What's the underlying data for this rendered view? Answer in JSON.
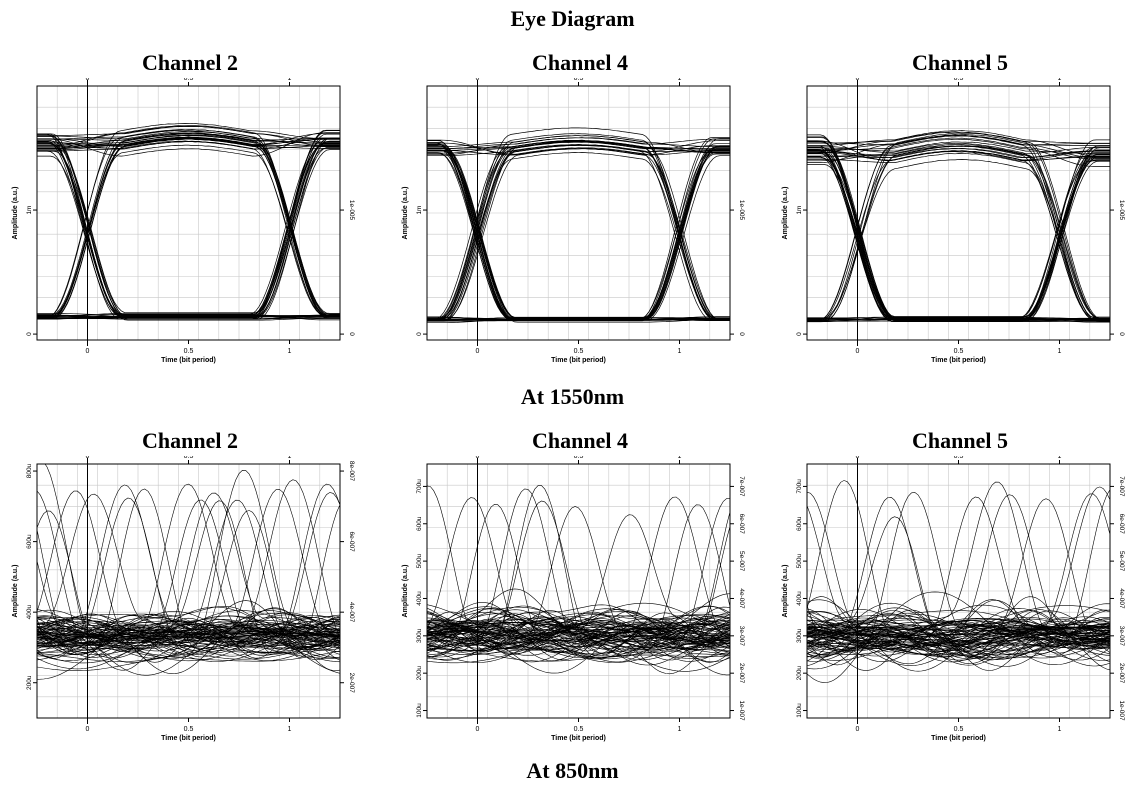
{
  "page": {
    "title": "Eye Diagram",
    "row_captions": [
      "At 1550nm",
      "At 850nm"
    ]
  },
  "chart_data": [
    {
      "type": "line",
      "group": "1550nm",
      "panel_title": "Channel 2",
      "xlabel": "Time (bit period)",
      "ylabel": "Amplitude (a.u.)",
      "xlim": [
        -0.25,
        1.25
      ],
      "ylim": [
        -0.02,
        0.84
      ],
      "x_ticks_bottom": [
        "0",
        "0.5",
        "1"
      ],
      "x_ticks_top": [
        "0",
        "0.5",
        "1"
      ],
      "y_ticks_left": [
        "0",
        "1m"
      ],
      "y_ticks_right": [
        "0",
        "1e-005"
      ],
      "y_tick_values": [
        0,
        0.42
      ],
      "eye": {
        "high": 0.65,
        "low": 0.06,
        "high_spread": 0.07,
        "low_spread": 0.018,
        "crossing_level": 0.33,
        "overshoot": 0.08
      },
      "traces": 60
    },
    {
      "type": "line",
      "group": "1550nm",
      "panel_title": "Channel 4",
      "xlabel": "Time (bit period)",
      "ylabel": "Amplitude (a.u.)",
      "xlim": [
        -0.25,
        1.25
      ],
      "ylim": [
        -0.02,
        0.84
      ],
      "x_ticks_bottom": [
        "0",
        "0.5",
        "1"
      ],
      "x_ticks_top": [
        "0",
        "0.5",
        "1"
      ],
      "y_ticks_left": [
        "0",
        "1m"
      ],
      "y_ticks_right": [
        "0",
        "1e-005"
      ],
      "y_tick_values": [
        0,
        0.42
      ],
      "eye": {
        "high": 0.63,
        "low": 0.05,
        "high_spread": 0.06,
        "low_spread": 0.015,
        "crossing_level": 0.32,
        "overshoot": 0.07
      },
      "traces": 60
    },
    {
      "type": "line",
      "group": "1550nm",
      "panel_title": "Channel 5",
      "xlabel": "Time (bit period)",
      "ylabel": "Amplitude (a.u.)",
      "xlim": [
        -0.25,
        1.25
      ],
      "ylim": [
        -0.02,
        0.84
      ],
      "x_ticks_bottom": [
        "0",
        "0.5",
        "1"
      ],
      "x_ticks_top": [
        "0",
        "0.5",
        "1"
      ],
      "y_ticks_left": [
        "0",
        "1m"
      ],
      "y_ticks_right": [
        "0",
        "1e-005"
      ],
      "y_tick_values": [
        0,
        0.42
      ],
      "eye": {
        "high": 0.62,
        "low": 0.05,
        "high_spread": 0.08,
        "low_spread": 0.015,
        "crossing_level": 0.3,
        "overshoot": 0.1
      },
      "traces": 60
    },
    {
      "type": "line",
      "group": "850nm",
      "panel_title": "Channel 2",
      "xlabel": "Time (bit period)",
      "ylabel": "Amplitude (a.u.)",
      "xlim": [
        -0.25,
        1.25
      ],
      "ylim": [
        0.1,
        0.82
      ],
      "x_ticks_bottom": [
        "0",
        "0.5",
        "1"
      ],
      "x_ticks_top": [
        "0",
        "0.5",
        "1"
      ],
      "y_ticks_left": [
        "200u",
        "400u",
        "600u",
        "800u"
      ],
      "y_ticks_right": [
        "2e-007",
        "4e-007",
        "6e-007",
        "8e-007"
      ],
      "y_tick_values": [
        0.2,
        0.4,
        0.6,
        0.8
      ],
      "noise": {
        "center": 0.33,
        "spread": 0.11,
        "peak": 0.78
      },
      "traces": 90
    },
    {
      "type": "line",
      "group": "850nm",
      "panel_title": "Channel 4",
      "xlabel": "Time (bit period)",
      "ylabel": "Amplitude (a.u.)",
      "xlim": [
        -0.25,
        1.25
      ],
      "ylim": [
        0.08,
        0.76
      ],
      "x_ticks_bottom": [
        "0",
        "0.5",
        "1"
      ],
      "x_ticks_top": [
        "0",
        "0.5",
        "1"
      ],
      "y_ticks_left": [
        "100u",
        "200u",
        "300u",
        "400u",
        "500u",
        "600u",
        "700u"
      ],
      "y_ticks_right": [
        "1e-007",
        "2e-007",
        "3e-007",
        "4e-007",
        "5e-007",
        "6e-007",
        "7e-007"
      ],
      "y_tick_values": [
        0.1,
        0.2,
        0.3,
        0.4,
        0.5,
        0.6,
        0.7
      ],
      "noise": {
        "center": 0.3,
        "spread": 0.1,
        "peak": 0.72
      },
      "traces": 90
    },
    {
      "type": "line",
      "group": "850nm",
      "panel_title": "Channel 5",
      "xlabel": "Time (bit period)",
      "ylabel": "Amplitude (a.u.)",
      "xlim": [
        -0.25,
        1.25
      ],
      "ylim": [
        0.08,
        0.76
      ],
      "x_ticks_bottom": [
        "0",
        "0.5",
        "1"
      ],
      "x_ticks_top": [
        "0",
        "0.5",
        "1"
      ],
      "y_ticks_left": [
        "100u",
        "200u",
        "300u",
        "400u",
        "500u",
        "600u",
        "700u"
      ],
      "y_ticks_right": [
        "1e-007",
        "2e-007",
        "3e-007",
        "4e-007",
        "5e-007",
        "6e-007",
        "7e-007"
      ],
      "y_tick_values": [
        0.1,
        0.2,
        0.3,
        0.4,
        0.5,
        0.6,
        0.7
      ],
      "noise": {
        "center": 0.3,
        "spread": 0.1,
        "peak": 0.72
      },
      "traces": 90
    }
  ]
}
